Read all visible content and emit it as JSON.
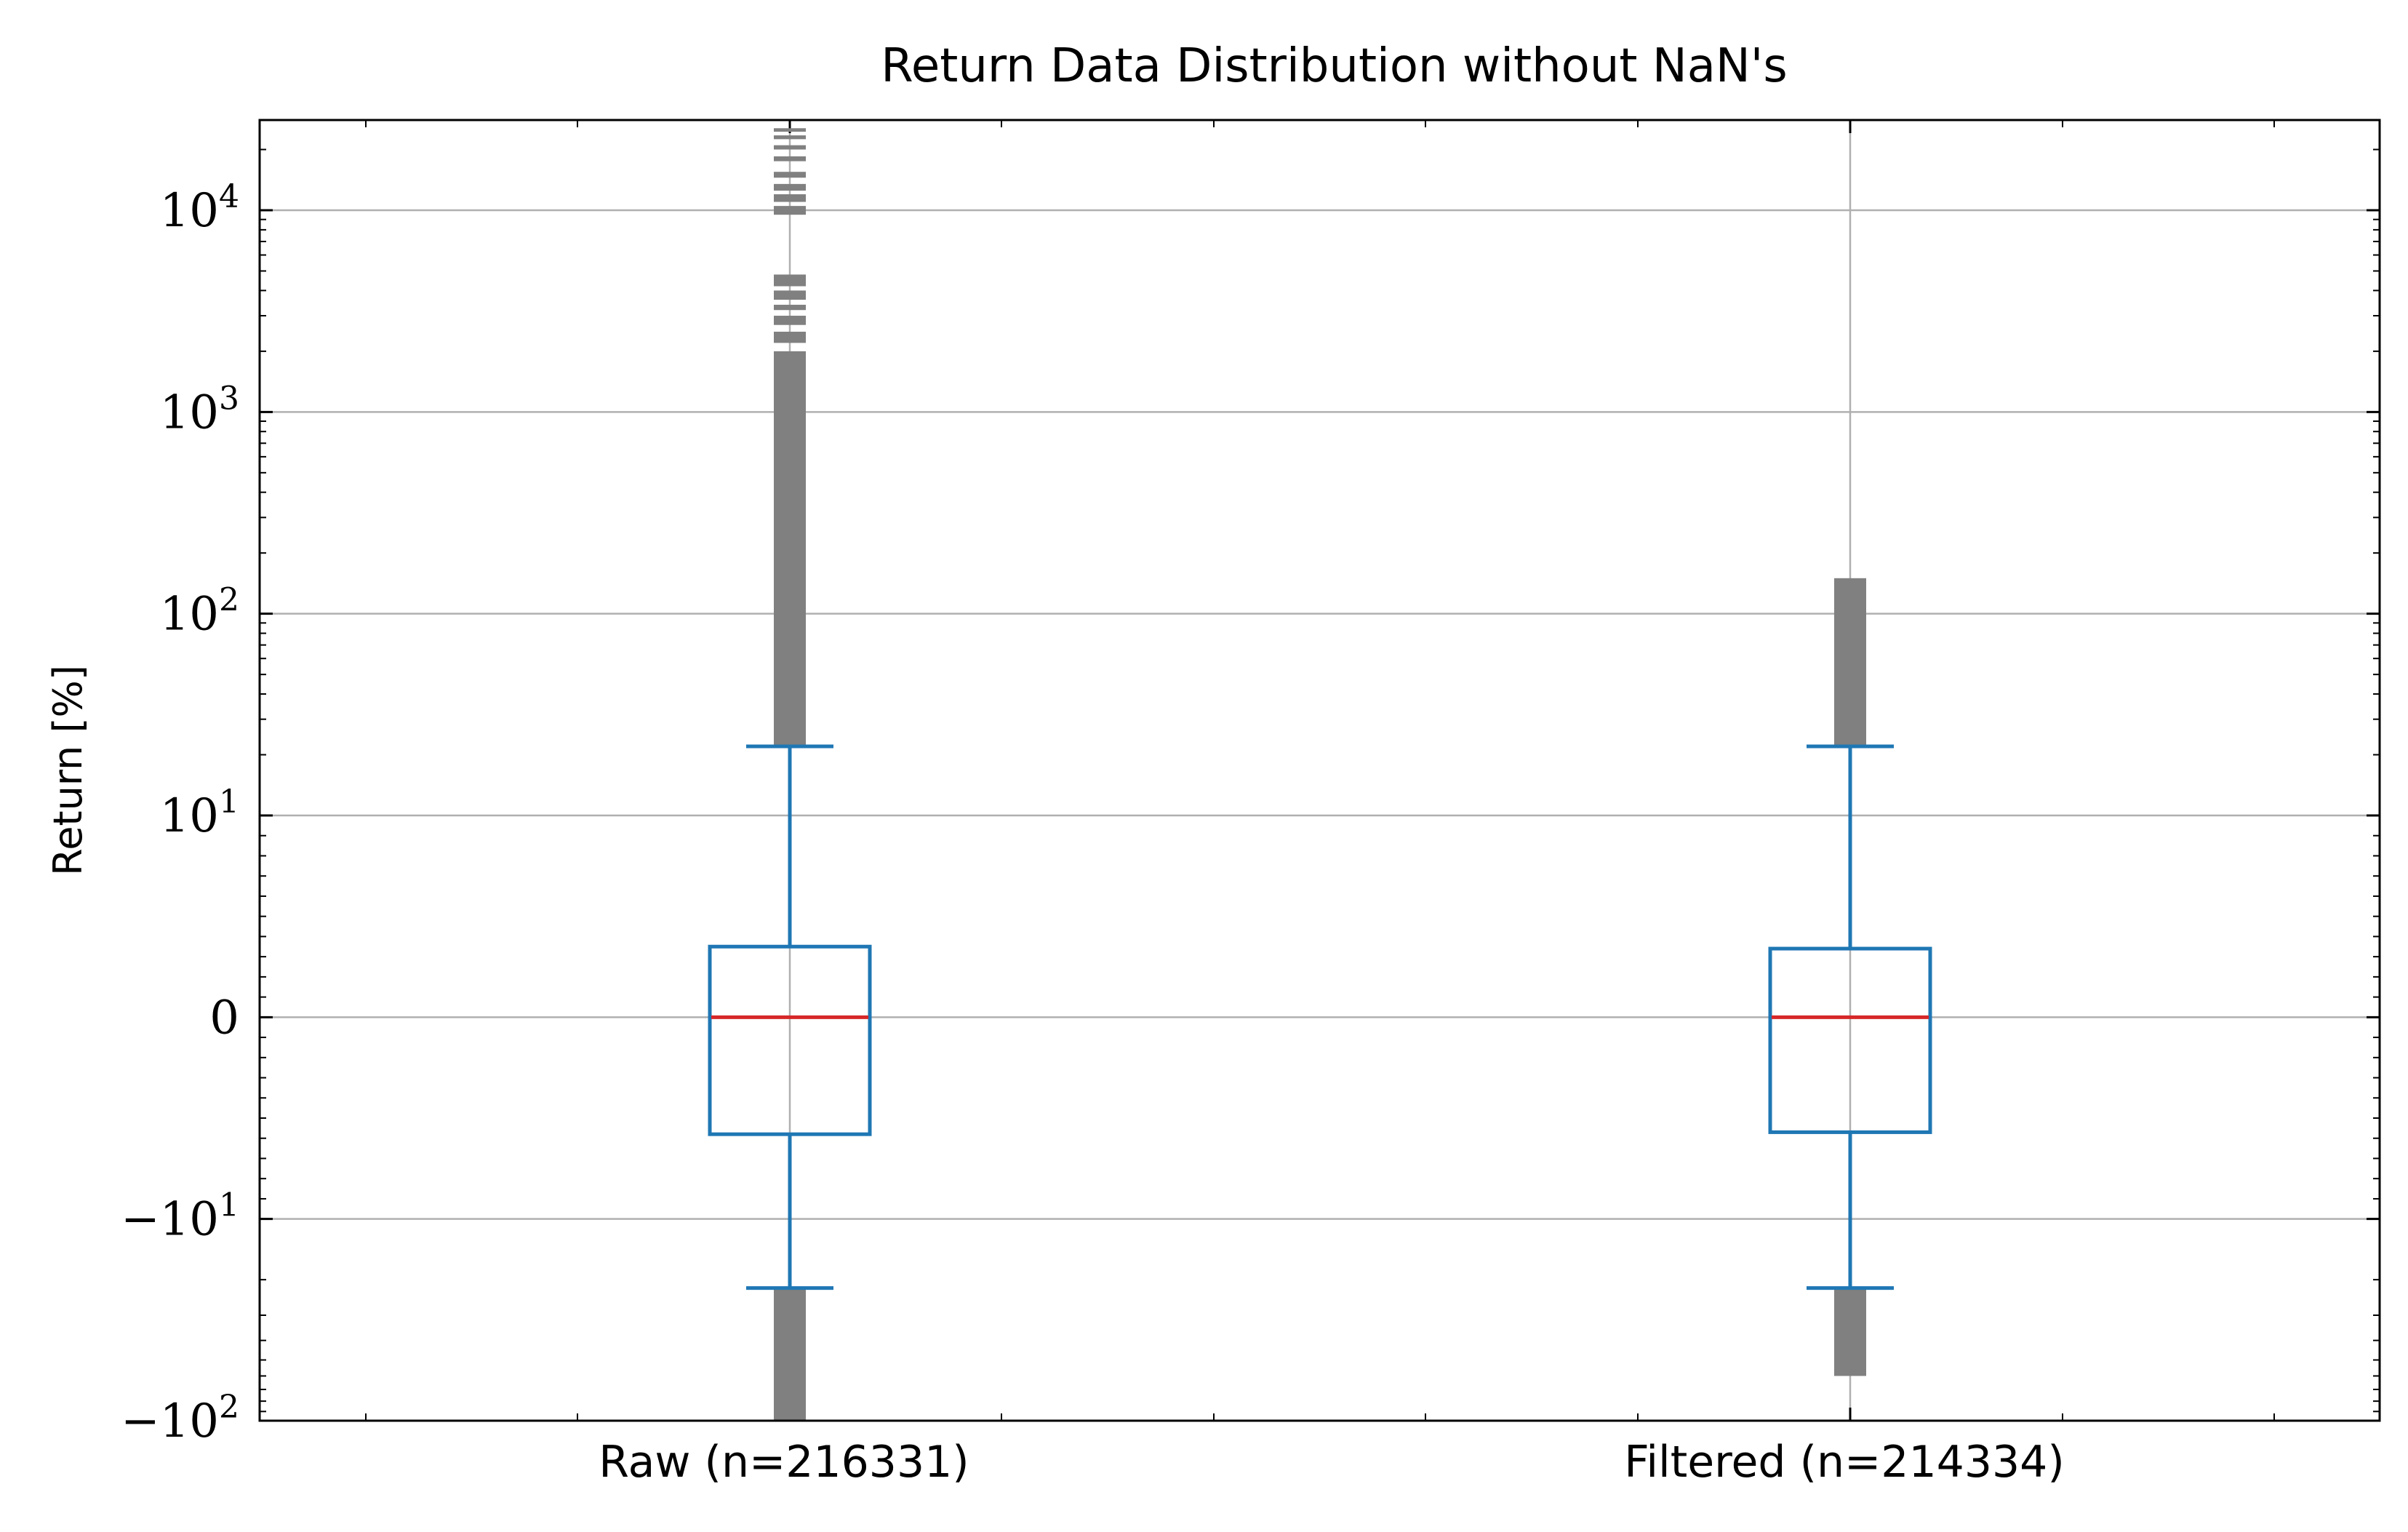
{
  "chart_data": {
    "type": "box",
    "title": "Return Data Distribution without NaN's",
    "ylabel": "Return [%]",
    "xlabel": "",
    "yscale": "symlog",
    "ylim": [
      -100,
      28000
    ],
    "grid": true,
    "yticks": [
      {
        "value": -100,
        "label": "−10",
        "exp": "2"
      },
      {
        "value": -10,
        "label": "−10",
        "exp": "1"
      },
      {
        "value": 0,
        "label": "0",
        "exp": ""
      },
      {
        "value": 10,
        "label": "10",
        "exp": "1"
      },
      {
        "value": 100,
        "label": "10",
        "exp": "2"
      },
      {
        "value": 1000,
        "label": "10",
        "exp": "3"
      },
      {
        "value": 10000,
        "label": "10",
        "exp": "4"
      }
    ],
    "categories": [
      "Raw (n=216331)",
      "Filtered (n=214334)"
    ],
    "boxes": [
      {
        "label": "Raw (n=216331)",
        "whisker_low": -22,
        "q1": -5.8,
        "median": 0,
        "q3": 3.5,
        "whisker_high": 22,
        "outliers_high": [
          [
            22,
            2000
          ],
          [
            2200,
            2500
          ],
          [
            2700,
            3000
          ],
          [
            3200,
            3400
          ],
          [
            3600,
            4000
          ],
          [
            4200,
            4800
          ],
          [
            9500,
            10500
          ],
          [
            11000,
            12000
          ],
          [
            12500,
            13500
          ],
          [
            14500,
            15500
          ],
          [
            17500,
            18500
          ],
          [
            20000,
            21000
          ],
          [
            22500,
            23500
          ],
          [
            24500,
            25500
          ]
        ],
        "outliers_low": [
          [
            -100,
            -22
          ]
        ]
      },
      {
        "label": "Filtered (n=214334)",
        "whisker_low": -22,
        "q1": -5.7,
        "median": 0,
        "q3": 3.4,
        "whisker_high": 22,
        "outliers_high": [
          [
            22,
            150
          ]
        ],
        "outliers_low": [
          [
            -60,
            -22
          ]
        ]
      }
    ],
    "colors": {
      "box": "#1f77b4",
      "median": "#d62728",
      "outlier": "#808080",
      "grid": "#b0b0b0"
    }
  }
}
